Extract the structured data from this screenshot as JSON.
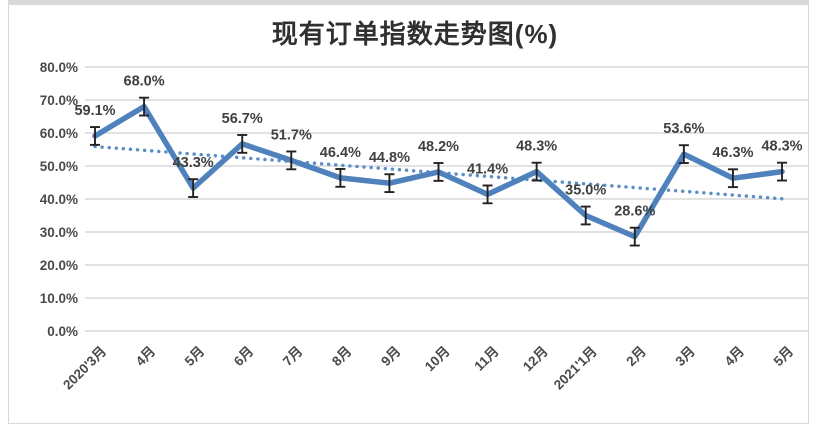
{
  "chart_data": {
    "type": "line",
    "title": "现有订单指数走势图(%)",
    "categories": [
      "2020'3月",
      "4月",
      "5月",
      "6月",
      "7月",
      "8月",
      "9月",
      "10月",
      "11月",
      "12月",
      "2021'1月",
      "2月",
      "3月",
      "4月",
      "5月"
    ],
    "values": [
      59.1,
      68.0,
      43.3,
      56.7,
      51.7,
      46.4,
      44.8,
      48.2,
      41.4,
      48.3,
      35.0,
      28.6,
      53.6,
      46.3,
      48.3
    ],
    "data_labels": [
      "59.1%",
      "68.0%",
      "43.3%",
      "56.7%",
      "51.7%",
      "46.4%",
      "44.8%",
      "48.2%",
      "41.4%",
      "48.3%",
      "35.0%",
      "28.6%",
      "53.6%",
      "46.3%",
      "48.3%"
    ],
    "ylim": [
      0,
      80
    ],
    "ytick_step": 10,
    "ytick_labels": [
      "0.0%",
      "10.0%",
      "20.0%",
      "30.0%",
      "40.0%",
      "50.0%",
      "60.0%",
      "70.0%",
      "80.0%"
    ],
    "xlabel": "",
    "ylabel": "",
    "grid": true,
    "legend": false,
    "trendline": {
      "type": "linear",
      "style": "dotted"
    },
    "error_bars": {
      "plus": 2.7,
      "minus": 2.7
    },
    "colors": {
      "line": "#4f81bd",
      "trendline": "#5b8dc9",
      "error_bar": "#222222",
      "gridline": "#d9d9d9",
      "data_label": "#404040",
      "axis_text": "#4a4a4a",
      "title": "#303030",
      "panel_border": "#d9d9d9"
    }
  }
}
